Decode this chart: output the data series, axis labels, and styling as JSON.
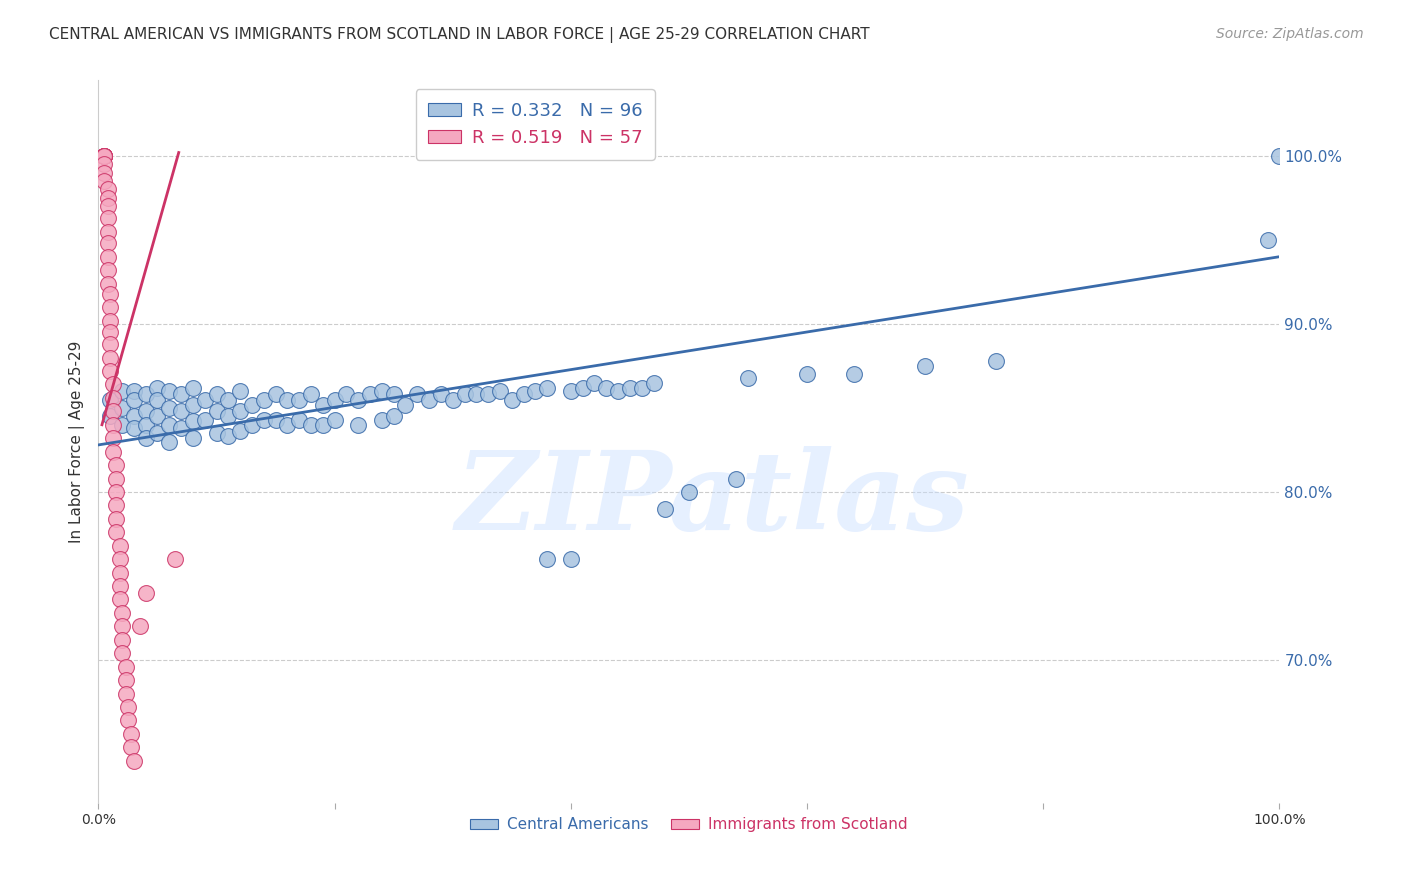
{
  "title": "CENTRAL AMERICAN VS IMMIGRANTS FROM SCOTLAND IN LABOR FORCE | AGE 25-29 CORRELATION CHART",
  "source": "Source: ZipAtlas.com",
  "ylabel": "In Labor Force | Age 25-29",
  "ytick_labels": [
    "70.0%",
    "80.0%",
    "90.0%",
    "100.0%"
  ],
  "ytick_values": [
    0.7,
    0.8,
    0.9,
    1.0
  ],
  "xlim": [
    0.0,
    1.0
  ],
  "ylim": [
    0.615,
    1.045
  ],
  "blue_R": 0.332,
  "blue_N": 96,
  "pink_R": 0.519,
  "pink_N": 57,
  "blue_color": "#A8C4E0",
  "pink_color": "#F5A8C0",
  "blue_line_color": "#3A6BAA",
  "pink_line_color": "#CC3366",
  "legend_label_blue": "Central Americans",
  "legend_label_pink": "Immigrants from Scotland",
  "blue_scatter_x": [
    0.01,
    0.01,
    0.02,
    0.02,
    0.02,
    0.03,
    0.03,
    0.03,
    0.03,
    0.04,
    0.04,
    0.04,
    0.04,
    0.05,
    0.05,
    0.05,
    0.05,
    0.06,
    0.06,
    0.06,
    0.06,
    0.07,
    0.07,
    0.07,
    0.08,
    0.08,
    0.08,
    0.08,
    0.09,
    0.09,
    0.1,
    0.1,
    0.1,
    0.11,
    0.11,
    0.11,
    0.12,
    0.12,
    0.12,
    0.13,
    0.13,
    0.14,
    0.14,
    0.15,
    0.15,
    0.16,
    0.16,
    0.17,
    0.17,
    0.18,
    0.18,
    0.19,
    0.19,
    0.2,
    0.2,
    0.21,
    0.22,
    0.22,
    0.23,
    0.24,
    0.24,
    0.25,
    0.25,
    0.26,
    0.27,
    0.28,
    0.29,
    0.3,
    0.31,
    0.32,
    0.33,
    0.34,
    0.35,
    0.36,
    0.37,
    0.38,
    0.4,
    0.41,
    0.42,
    0.43,
    0.44,
    0.45,
    0.46,
    0.47,
    0.48,
    0.5,
    0.54,
    0.55,
    0.6,
    0.64,
    0.7,
    0.76,
    0.99,
    1.0,
    0.38,
    0.4
  ],
  "blue_scatter_y": [
    0.855,
    0.845,
    0.86,
    0.85,
    0.84,
    0.86,
    0.855,
    0.845,
    0.838,
    0.858,
    0.848,
    0.84,
    0.832,
    0.862,
    0.855,
    0.845,
    0.835,
    0.86,
    0.85,
    0.84,
    0.83,
    0.858,
    0.848,
    0.838,
    0.862,
    0.852,
    0.842,
    0.832,
    0.855,
    0.843,
    0.858,
    0.848,
    0.835,
    0.855,
    0.845,
    0.833,
    0.86,
    0.848,
    0.836,
    0.852,
    0.84,
    0.855,
    0.843,
    0.858,
    0.843,
    0.855,
    0.84,
    0.855,
    0.843,
    0.858,
    0.84,
    0.852,
    0.84,
    0.855,
    0.843,
    0.858,
    0.84,
    0.855,
    0.858,
    0.843,
    0.86,
    0.845,
    0.858,
    0.852,
    0.858,
    0.855,
    0.858,
    0.855,
    0.858,
    0.858,
    0.858,
    0.86,
    0.855,
    0.858,
    0.86,
    0.862,
    0.86,
    0.862,
    0.865,
    0.862,
    0.86,
    0.862,
    0.862,
    0.865,
    0.79,
    0.8,
    0.808,
    0.868,
    0.87,
    0.87,
    0.875,
    0.878,
    0.95,
    1.0,
    0.76,
    0.76
  ],
  "pink_scatter_x": [
    0.005,
    0.005,
    0.005,
    0.005,
    0.005,
    0.005,
    0.005,
    0.005,
    0.005,
    0.008,
    0.008,
    0.008,
    0.008,
    0.008,
    0.008,
    0.008,
    0.008,
    0.008,
    0.01,
    0.01,
    0.01,
    0.01,
    0.01,
    0.01,
    0.01,
    0.012,
    0.012,
    0.012,
    0.012,
    0.012,
    0.012,
    0.015,
    0.015,
    0.015,
    0.015,
    0.015,
    0.015,
    0.018,
    0.018,
    0.018,
    0.018,
    0.018,
    0.02,
    0.02,
    0.02,
    0.02,
    0.023,
    0.023,
    0.023,
    0.025,
    0.025,
    0.028,
    0.028,
    0.03,
    0.035,
    0.04,
    0.065
  ],
  "pink_scatter_y": [
    1.0,
    1.0,
    1.0,
    1.0,
    1.0,
    1.0,
    0.995,
    0.99,
    0.985,
    0.98,
    0.975,
    0.97,
    0.963,
    0.955,
    0.948,
    0.94,
    0.932,
    0.924,
    0.918,
    0.91,
    0.902,
    0.895,
    0.888,
    0.88,
    0.872,
    0.864,
    0.856,
    0.848,
    0.84,
    0.832,
    0.824,
    0.816,
    0.808,
    0.8,
    0.792,
    0.784,
    0.776,
    0.768,
    0.76,
    0.752,
    0.744,
    0.736,
    0.728,
    0.72,
    0.712,
    0.704,
    0.696,
    0.688,
    0.68,
    0.672,
    0.664,
    0.656,
    0.648,
    0.64,
    0.72,
    0.74,
    0.76
  ],
  "blue_trendline_x": [
    0.0,
    1.0
  ],
  "blue_trendline_y": [
    0.828,
    0.94
  ],
  "pink_trendline_x": [
    0.003,
    0.068
  ],
  "pink_trendline_y": [
    0.84,
    1.002
  ],
  "watermark": "ZIPatlas",
  "background_color": "#FFFFFF",
  "grid_color": "#CCCCCC",
  "axis_color": "#CCCCCC",
  "tick_color_blue": "#3A6BAA",
  "title_fontsize": 11,
  "source_fontsize": 10,
  "ylabel_fontsize": 11
}
